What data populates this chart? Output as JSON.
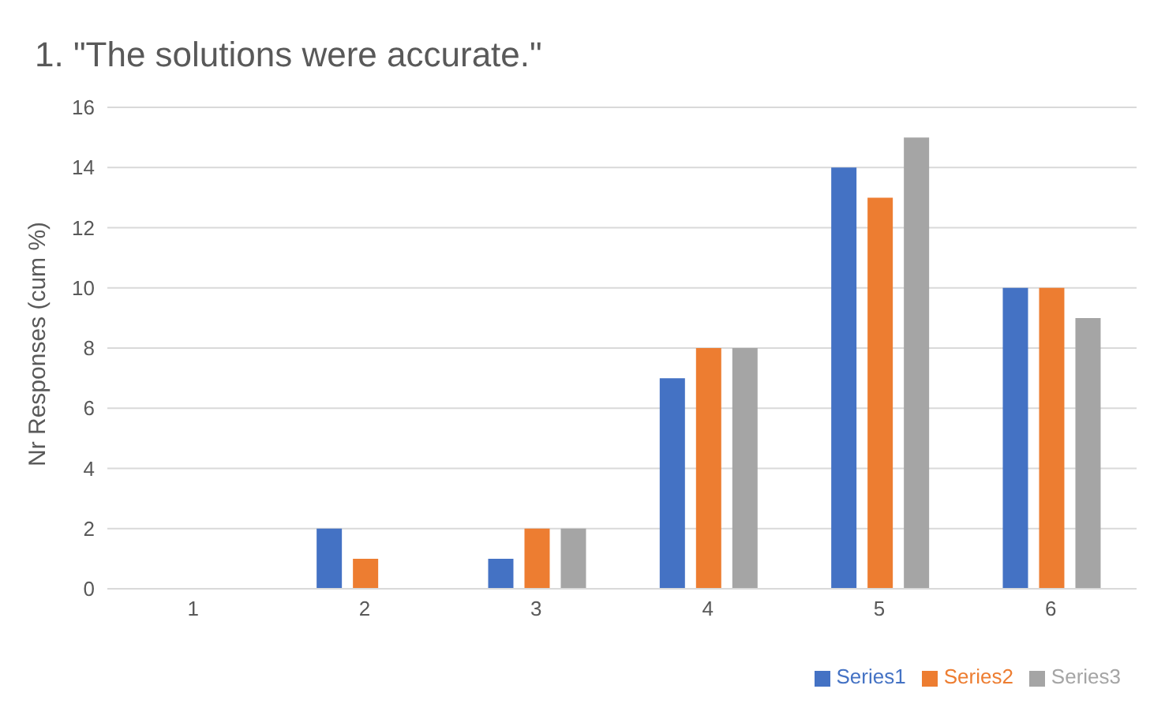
{
  "chart_data": {
    "type": "bar",
    "title": "1. \"The solutions were accurate.\"",
    "ylabel": "Nr Responses (cum %)",
    "categories": [
      "1",
      "2",
      "3",
      "4",
      "5",
      "6"
    ],
    "series": [
      {
        "name": "Series1",
        "color": "#4472c4",
        "values": [
          0,
          2,
          1,
          7,
          14,
          10
        ]
      },
      {
        "name": "Series2",
        "color": "#ed7d31",
        "values": [
          0,
          1,
          2,
          8,
          13,
          10
        ]
      },
      {
        "name": "Series3",
        "color": "#a5a5a5",
        "values": [
          0,
          0,
          2,
          8,
          15,
          9
        ]
      }
    ],
    "ylim": [
      0,
      16
    ],
    "yticks": [
      0,
      2,
      4,
      6,
      8,
      10,
      12,
      14,
      16
    ],
    "grid": "y",
    "legend": "bottom right"
  }
}
